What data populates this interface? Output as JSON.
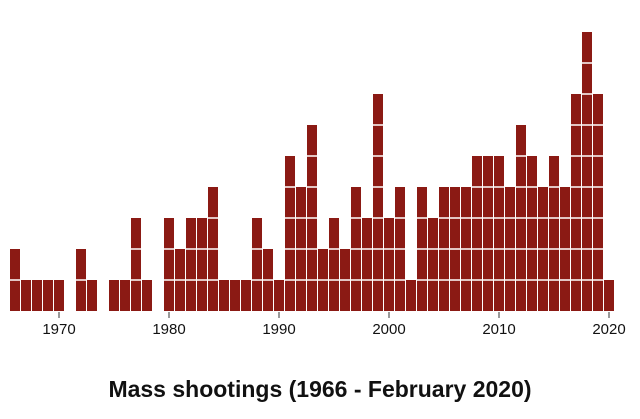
{
  "chart_data": {
    "type": "bar",
    "title": "Mass shootings (1966 - February 2020)",
    "x": [
      1966,
      1967,
      1968,
      1969,
      1970,
      1971,
      1972,
      1973,
      1974,
      1975,
      1976,
      1977,
      1978,
      1979,
      1980,
      1981,
      1982,
      1983,
      1984,
      1985,
      1986,
      1987,
      1988,
      1989,
      1990,
      1991,
      1992,
      1993,
      1994,
      1995,
      1996,
      1997,
      1998,
      1999,
      2000,
      2001,
      2002,
      2003,
      2004,
      2005,
      2006,
      2007,
      2008,
      2009,
      2010,
      2011,
      2012,
      2013,
      2014,
      2015,
      2016,
      2017,
      2018,
      2019,
      2020
    ],
    "values": [
      2,
      1,
      1,
      1,
      1,
      0,
      2,
      1,
      0,
      1,
      1,
      3,
      1,
      0,
      3,
      2,
      3,
      3,
      4,
      1,
      1,
      1,
      3,
      2,
      1,
      5,
      4,
      6,
      2,
      3,
      2,
      4,
      3,
      7,
      3,
      4,
      1,
      4,
      3,
      4,
      4,
      4,
      5,
      5,
      5,
      4,
      6,
      5,
      4,
      5,
      4,
      7,
      9,
      7,
      1
    ],
    "color": "#8b1a14",
    "xlim": [
      1965.5,
      2020.5
    ],
    "xticks": [
      1970,
      1980,
      1990,
      2000,
      2010,
      2020
    ]
  }
}
